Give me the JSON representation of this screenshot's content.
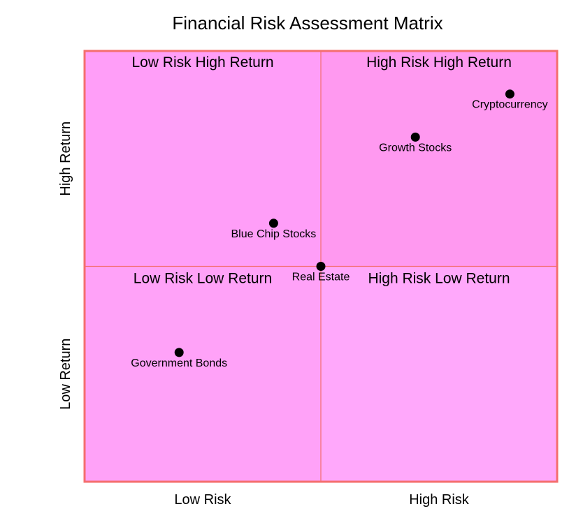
{
  "chart_data": {
    "type": "scatter",
    "title": "Financial Risk Assessment Matrix",
    "xlabel": "",
    "ylabel": "",
    "xlim": [
      0,
      1
    ],
    "ylim": [
      0,
      1
    ],
    "x_tick_labels": [
      "Low Risk",
      "High Risk"
    ],
    "y_tick_labels": [
      "Low Return",
      "High Return"
    ],
    "quadrants": [
      {
        "label": "Low Risk High Return",
        "fill": "#ff9ef8"
      },
      {
        "label": "High Risk High Return",
        "fill": "#ff99f0"
      },
      {
        "label": "Low Risk Low Return",
        "fill": "#ffa2f8"
      },
      {
        "label": "High Risk Low Return",
        "fill": "#ffa8fb"
      }
    ],
    "points": [
      {
        "label": "Cryptocurrency",
        "x": 0.9,
        "y": 0.9
      },
      {
        "label": "Growth Stocks",
        "x": 0.7,
        "y": 0.8
      },
      {
        "label": "Blue Chip Stocks",
        "x": 0.4,
        "y": 0.6
      },
      {
        "label": "Real Estate",
        "x": 0.5,
        "y": 0.5
      },
      {
        "label": "Government Bonds",
        "x": 0.2,
        "y": 0.3
      }
    ],
    "colors": {
      "border": "#f46e6e",
      "divider": "#f46e6e",
      "point": "#000000"
    },
    "grid": false,
    "legend": "none"
  }
}
